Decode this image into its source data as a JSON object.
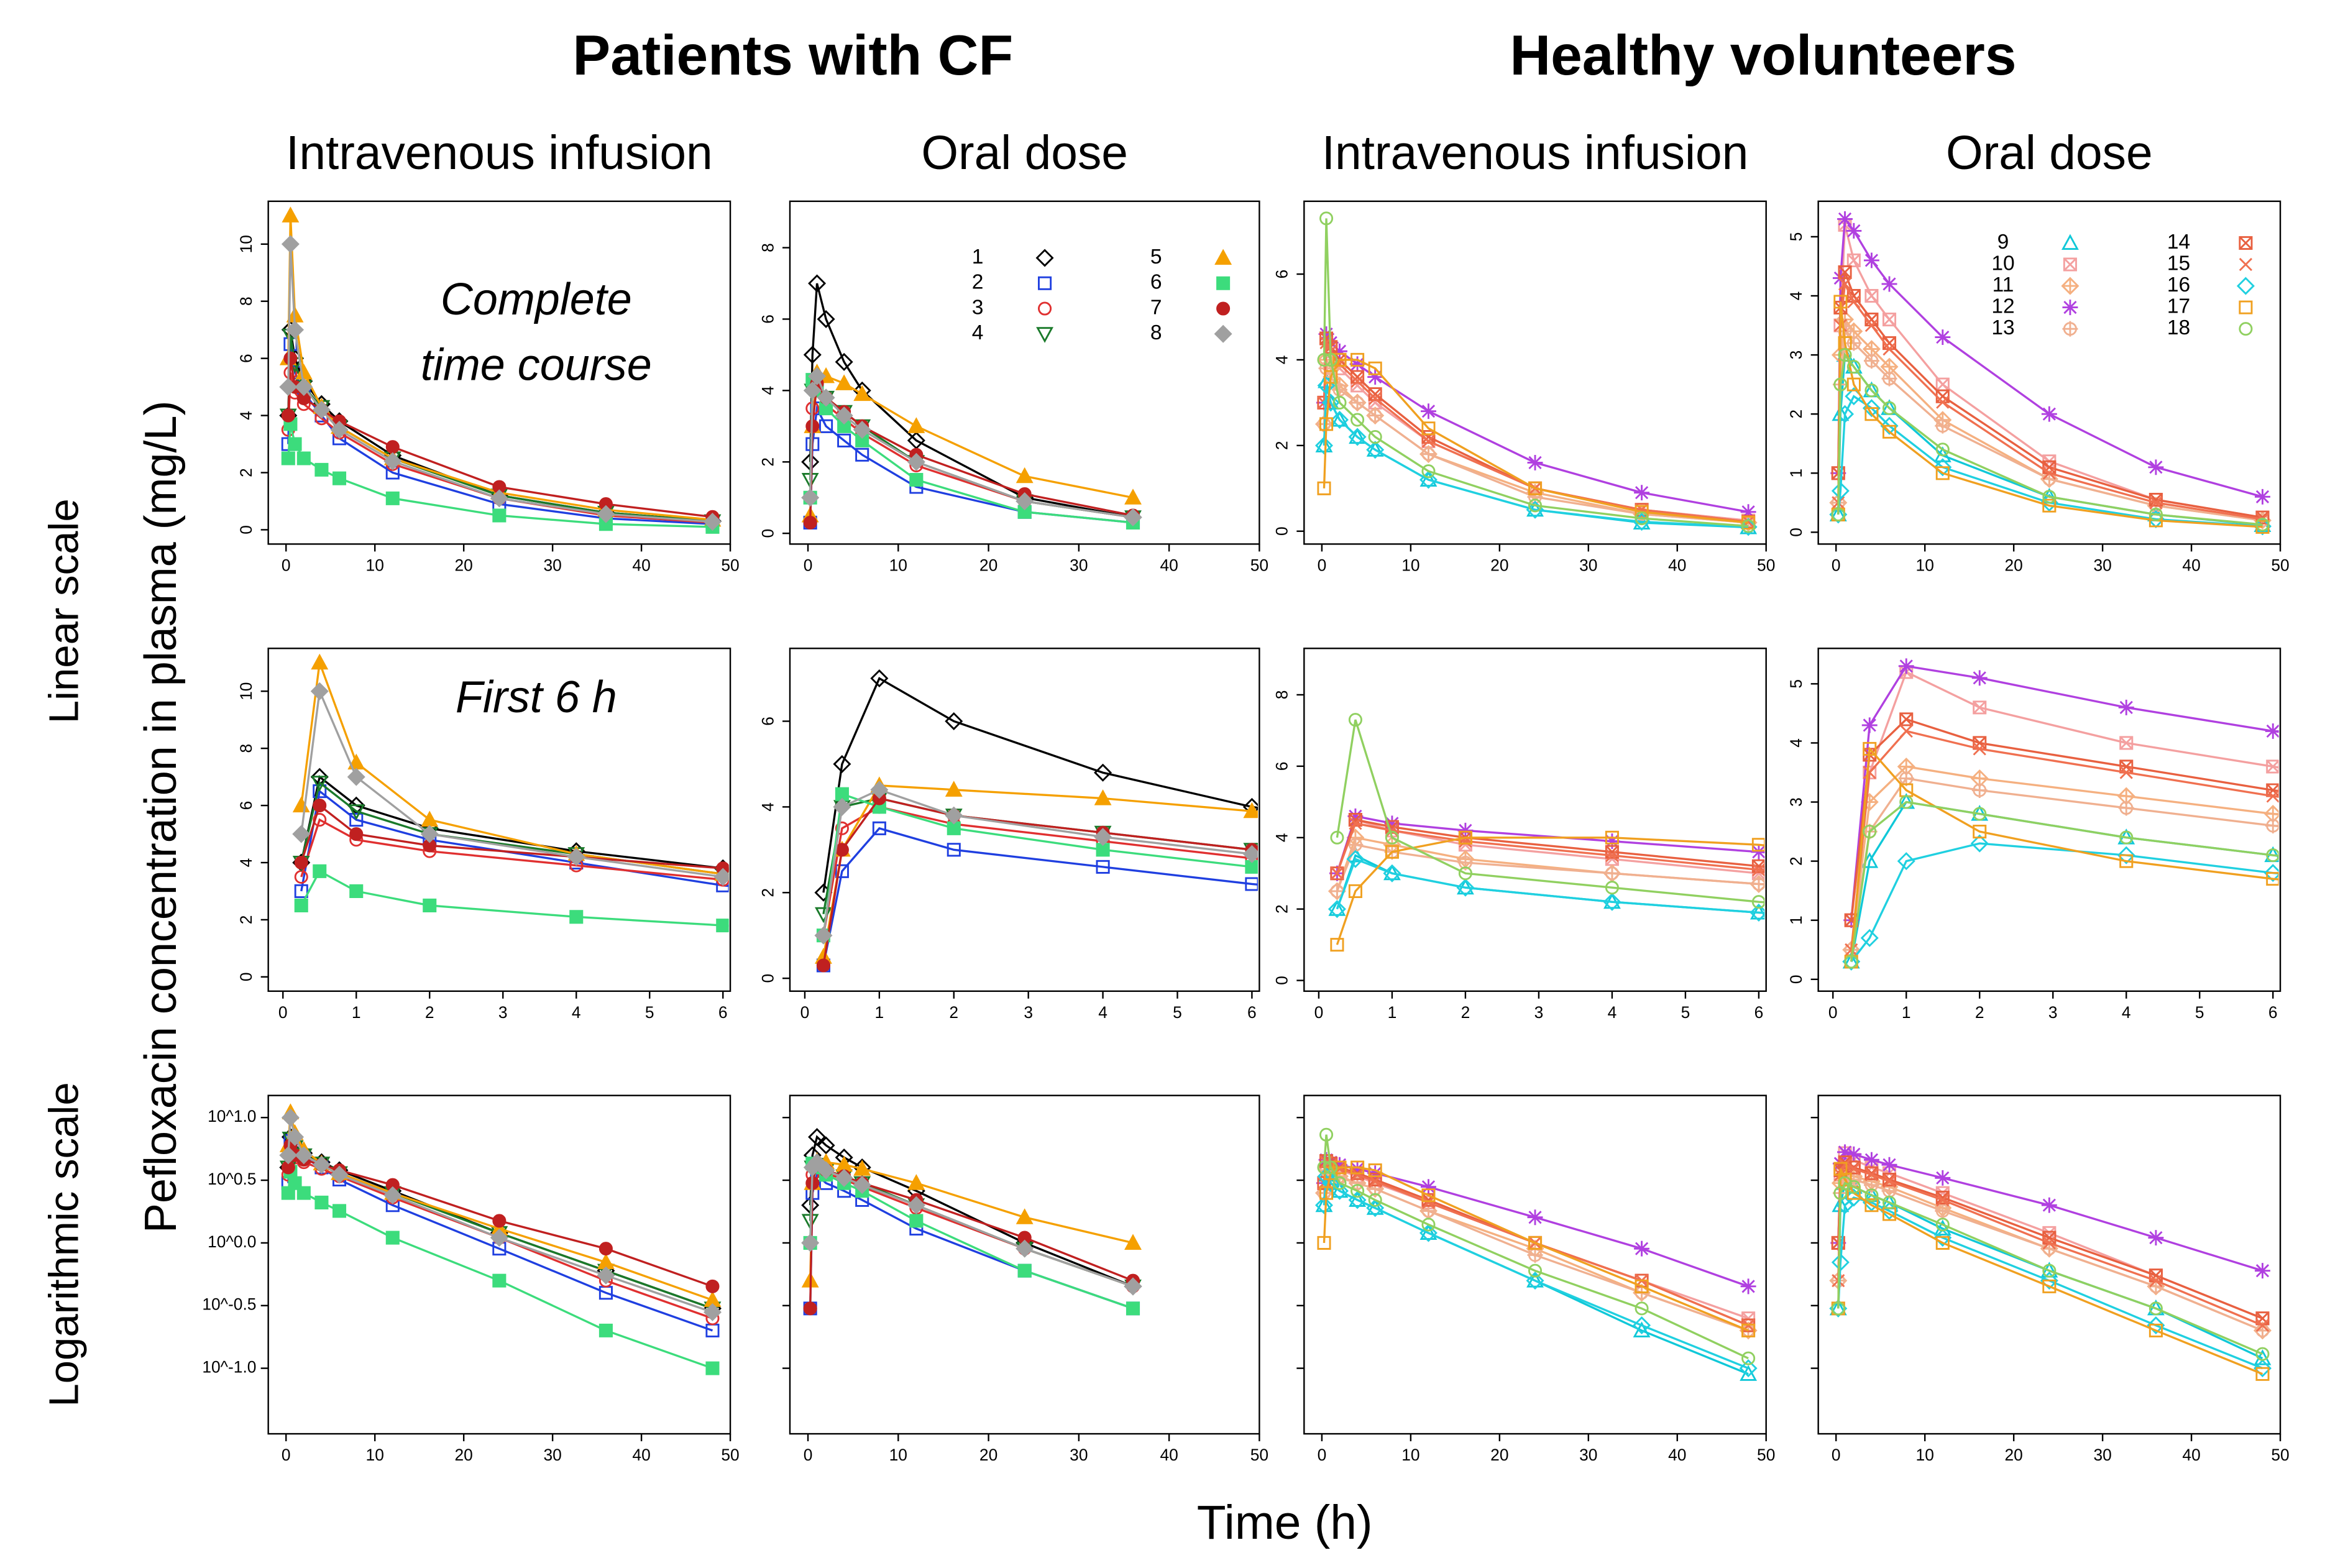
{
  "group_titles": [
    "Patients with CF",
    "Healthy volunteers"
  ],
  "row_labels": [
    "Linear scale",
    "Logarithmic scale"
  ],
  "ylabel": "Pefloxacin concentration in plasma (mg/L)",
  "xlabel": "Time (h)",
  "chart_data": [
    {
      "type": "line",
      "title": "Intravenous infusion",
      "legend": false,
      "x": [
        0.25,
        0.5,
        1,
        2,
        4,
        6,
        12,
        24,
        36,
        48
      ],
      "series": [
        {
          "name": "1",
          "color": "#000000",
          "marker": "diamond",
          "filled": false,
          "values": [
            4,
            7,
            6,
            5.2,
            4.4,
            3.8,
            2.6,
            1.2,
            0.6,
            0.3
          ]
        },
        {
          "name": "2",
          "color": "#1f3fe0",
          "marker": "square",
          "filled": false,
          "values": [
            3,
            6.5,
            5.5,
            4.8,
            4,
            3.2,
            2,
            0.9,
            0.4,
            0.2
          ]
        },
        {
          "name": "3",
          "color": "#e03030",
          "marker": "circle",
          "filled": false,
          "values": [
            3.5,
            5.5,
            4.8,
            4.4,
            3.9,
            3.4,
            2.3,
            1.1,
            0.5,
            0.25
          ]
        },
        {
          "name": "4",
          "color": "#1a7a2a",
          "marker": "tri-down",
          "filled": false,
          "values": [
            4,
            6.8,
            5.8,
            5,
            4.3,
            3.6,
            2.5,
            1.2,
            0.6,
            0.3
          ]
        },
        {
          "name": "5",
          "color": "#f5a000",
          "marker": "tri-up",
          "filled": true,
          "values": [
            6,
            11,
            7.5,
            5.5,
            4.3,
            3.6,
            2.5,
            1.3,
            0.7,
            0.35
          ]
        },
        {
          "name": "6",
          "color": "#3cdc7c",
          "marker": "square",
          "filled": true,
          "values": [
            2.5,
            3.7,
            3,
            2.5,
            2.1,
            1.8,
            1.1,
            0.5,
            0.2,
            0.1
          ]
        },
        {
          "name": "7",
          "color": "#c02020",
          "marker": "circle",
          "filled": true,
          "values": [
            4,
            6,
            5,
            4.6,
            4.2,
            3.8,
            2.9,
            1.5,
            0.9,
            0.45
          ]
        },
        {
          "name": "8",
          "color": "#a0a0a0",
          "marker": "diamond",
          "filled": true,
          "values": [
            5,
            10,
            7,
            5,
            4.2,
            3.5,
            2.4,
            1.1,
            0.55,
            0.28
          ]
        }
      ],
      "views": [
        {
          "xlim": [
            -2,
            50
          ],
          "xticks": [
            0,
            10,
            20,
            30,
            40,
            50
          ],
          "ylim": [
            -0.5,
            11.5
          ],
          "yticks": [
            0,
            2,
            4,
            6,
            8,
            10
          ],
          "annotation": [
            "Complete",
            "time course"
          ]
        },
        {
          "xlim": [
            -0.2,
            6.1
          ],
          "xticks": [
            0,
            1,
            2,
            3,
            4,
            5,
            6
          ],
          "ylim": [
            -0.5,
            11.5
          ],
          "yticks": [
            0,
            2,
            4,
            6,
            8,
            10
          ],
          "annotation": [
            "First 6 h"
          ]
        },
        {
          "xlim": [
            -2,
            50
          ],
          "xticks": [
            0,
            10,
            20,
            30,
            40,
            50
          ],
          "log_scale": true,
          "ylim": [
            0.03,
            15
          ],
          "yticks": [
            {
              "value": 10,
              "label": "10^1.0"
            },
            {
              "value": 3.162,
              "label": "10^0.5"
            },
            {
              "value": 1,
              "label": "10^0.0"
            },
            {
              "value": 0.3162,
              "label": "10^-0.5"
            },
            {
              "value": 0.1,
              "label": "10^-1.0"
            }
          ]
        }
      ]
    },
    {
      "type": "line",
      "title": "Oral dose",
      "legend": true,
      "x": [
        0.25,
        0.5,
        1,
        2,
        4,
        6,
        12,
        24,
        36,
        48
      ],
      "series": [
        {
          "name": "1",
          "color": "#000000",
          "marker": "diamond",
          "filled": false,
          "values": [
            2,
            5,
            7,
            6,
            4.8,
            4,
            2.6,
            1,
            0.45,
            null
          ]
        },
        {
          "name": "2",
          "color": "#1f3fe0",
          "marker": "square",
          "filled": false,
          "values": [
            0.3,
            2.5,
            3.5,
            3,
            2.6,
            2.2,
            1.3,
            0.6,
            0.3,
            null
          ]
        },
        {
          "name": "3",
          "color": "#e03030",
          "marker": "circle",
          "filled": false,
          "values": [
            1,
            3.5,
            4,
            3.6,
            3.2,
            2.8,
            1.9,
            0.9,
            0.45,
            null
          ]
        },
        {
          "name": "4",
          "color": "#1a7a2a",
          "marker": "tri-down",
          "filled": false,
          "values": [
            1.5,
            4,
            4.2,
            3.8,
            3.4,
            3,
            2,
            0.9,
            0.45,
            null
          ]
        },
        {
          "name": "5",
          "color": "#f5a000",
          "marker": "tri-up",
          "filled": true,
          "values": [
            0.5,
            3,
            4.5,
            4.4,
            4.2,
            3.9,
            3,
            1.6,
            1,
            null
          ]
        },
        {
          "name": "6",
          "color": "#3cdc7c",
          "marker": "square",
          "filled": true,
          "values": [
            1,
            4.3,
            4,
            3.5,
            3,
            2.6,
            1.5,
            0.6,
            0.3,
            null
          ]
        },
        {
          "name": "7",
          "color": "#c02020",
          "marker": "circle",
          "filled": true,
          "values": [
            0.3,
            3,
            4.2,
            3.8,
            3.4,
            3,
            2.2,
            1.1,
            0.5,
            null
          ]
        },
        {
          "name": "8",
          "color": "#a0a0a0",
          "marker": "diamond",
          "filled": true,
          "values": [
            1,
            4,
            4.4,
            3.8,
            3.3,
            2.9,
            2,
            0.9,
            0.45,
            null
          ]
        }
      ],
      "views": [
        {
          "xlim": [
            -2,
            50
          ],
          "xticks": [
            0,
            10,
            20,
            30,
            40,
            50
          ],
          "ylim": [
            -0.3,
            9.3
          ],
          "yticks": [
            0,
            2,
            4,
            6,
            8
          ]
        },
        {
          "xlim": [
            -0.2,
            6.1
          ],
          "xticks": [
            0,
            1,
            2,
            3,
            4,
            5,
            6
          ],
          "ylim": [
            -0.3,
            7.7
          ],
          "yticks": [
            0,
            2,
            4,
            6
          ]
        },
        {
          "xlim": [
            -2,
            50
          ],
          "xticks": [
            0,
            10,
            20,
            30,
            40,
            50
          ],
          "log_scale": true,
          "ylim": [
            0.03,
            15
          ],
          "yticks": [
            10,
            3.162,
            1,
            0.3162,
            0.1
          ],
          "ytick_labels": false
        }
      ]
    },
    {
      "type": "line",
      "title": "Intravenous infusion",
      "legend": false,
      "x": [
        0.25,
        0.5,
        1,
        2,
        4,
        6,
        12,
        24,
        36,
        48
      ],
      "series": [
        {
          "name": "9",
          "color": "#10c8d8",
          "marker": "tri-up",
          "filled": false,
          "values": [
            2,
            3.5,
            3,
            2.6,
            2.2,
            1.9,
            1.2,
            0.5,
            0.2,
            0.09
          ]
        },
        {
          "name": "10",
          "color": "#f4a0a0",
          "marker": "sqx",
          "filled": false,
          "values": [
            3,
            4.5,
            4.2,
            3.8,
            3.4,
            3,
            2.1,
            1,
            0.5,
            0.25
          ]
        },
        {
          "name": "11",
          "color": "#f5b080",
          "marker": "diaplus",
          "filled": false,
          "values": [
            2.5,
            4,
            3.8,
            3.4,
            3,
            2.7,
            1.8,
            0.9,
            0.4,
            0.2
          ]
        },
        {
          "name": "12",
          "color": "#b040e0",
          "marker": "star",
          "filled": false,
          "values": [
            3,
            4.6,
            4.4,
            4.2,
            3.9,
            3.6,
            2.8,
            1.6,
            0.9,
            0.45
          ]
        },
        {
          "name": "13",
          "color": "#f0b090",
          "marker": "circplus",
          "filled": false,
          "values": [
            2.5,
            3.8,
            3.6,
            3.3,
            3,
            2.7,
            1.8,
            0.8,
            0.4,
            0.2
          ]
        },
        {
          "name": "14",
          "color": "#e86040",
          "marker": "sqx",
          "filled": false,
          "values": [
            3,
            4.5,
            4.3,
            4,
            3.6,
            3.2,
            2.2,
            1,
            0.5,
            0.22
          ]
        },
        {
          "name": "15",
          "color": "#f07050",
          "marker": "x",
          "filled": false,
          "values": [
            3,
            4.4,
            4.2,
            3.9,
            3.5,
            3.1,
            2.1,
            1,
            0.5,
            0.22
          ]
        },
        {
          "name": "16",
          "color": "#20d0e0",
          "marker": "diamond",
          "filled": false,
          "values": [
            2,
            3.4,
            3,
            2.6,
            2.2,
            1.9,
            1.2,
            0.5,
            0.22,
            0.1
          ]
        },
        {
          "name": "17",
          "color": "#f0a020",
          "marker": "square",
          "filled": false,
          "values": [
            1,
            2.5,
            3.6,
            4,
            4,
            3.8,
            2.4,
            1,
            0.45,
            0.2
          ]
        },
        {
          "name": "18",
          "color": "#90d060",
          "marker": "circle",
          "filled": false,
          "values": [
            4,
            7.3,
            4,
            3,
            2.6,
            2.2,
            1.4,
            0.6,
            0.3,
            0.12
          ]
        }
      ],
      "views": [
        {
          "xlim": [
            -2,
            50
          ],
          "xticks": [
            0,
            10,
            20,
            30,
            40,
            50
          ],
          "ylim": [
            -0.3,
            7.7
          ],
          "yticks": [
            0,
            2,
            4,
            6
          ]
        },
        {
          "xlim": [
            -0.2,
            6.1
          ],
          "xticks": [
            0,
            1,
            2,
            3,
            4,
            5,
            6
          ],
          "ylim": [
            -0.3,
            9.3
          ],
          "yticks": [
            0,
            2,
            4,
            6,
            8
          ]
        },
        {
          "xlim": [
            -2,
            50
          ],
          "xticks": [
            0,
            10,
            20,
            30,
            40,
            50
          ],
          "log_scale": true,
          "ylim": [
            0.03,
            15
          ],
          "yticks": [
            10,
            3.162,
            1,
            0.3162,
            0.1
          ],
          "ytick_labels": false
        }
      ]
    },
    {
      "type": "line",
      "title": "Oral dose",
      "legend": true,
      "x": [
        0.25,
        0.5,
        1,
        2,
        4,
        6,
        12,
        24,
        36,
        48
      ],
      "series": [
        {
          "name": "9",
          "color": "#10c8d8",
          "marker": "tri-up",
          "filled": false,
          "values": [
            0.3,
            2,
            3,
            2.8,
            2.4,
            2.1,
            1.3,
            0.6,
            0.3,
            0.12
          ]
        },
        {
          "name": "10",
          "color": "#f4a0a0",
          "marker": "sqx",
          "filled": false,
          "values": [
            1,
            3.5,
            5.2,
            4.6,
            4,
            3.6,
            2.5,
            1.2,
            0.55,
            0.25
          ]
        },
        {
          "name": "11",
          "color": "#f5b080",
          "marker": "diaplus",
          "filled": false,
          "values": [
            0.5,
            3,
            3.6,
            3.4,
            3.1,
            2.8,
            1.9,
            0.9,
            0.45,
            0.2
          ]
        },
        {
          "name": "12",
          "color": "#b040e0",
          "marker": "star",
          "filled": false,
          "values": [
            1,
            4.3,
            5.3,
            5.1,
            4.6,
            4.2,
            3.3,
            2,
            1.1,
            0.6
          ]
        },
        {
          "name": "13",
          "color": "#f0b090",
          "marker": "circplus",
          "filled": false,
          "values": [
            0.5,
            2.5,
            3.4,
            3.2,
            2.9,
            2.6,
            1.8,
            0.9,
            0.45,
            0.2
          ]
        },
        {
          "name": "14",
          "color": "#e86040",
          "marker": "sqx",
          "filled": false,
          "values": [
            1,
            3.8,
            4.4,
            4,
            3.6,
            3.2,
            2.3,
            1.1,
            0.55,
            0.25
          ]
        },
        {
          "name": "15",
          "color": "#f07050",
          "marker": "x",
          "filled": false,
          "values": [
            0.5,
            3.5,
            4.2,
            3.9,
            3.5,
            3.1,
            2.2,
            1,
            0.5,
            0.22
          ]
        },
        {
          "name": "16",
          "color": "#20d0e0",
          "marker": "diamond",
          "filled": false,
          "values": [
            0.3,
            0.7,
            2,
            2.3,
            2.1,
            1.8,
            1.1,
            0.5,
            0.22,
            0.1
          ]
        },
        {
          "name": "17",
          "color": "#f0a020",
          "marker": "square",
          "filled": false,
          "values": [
            0.3,
            3.9,
            3.2,
            2.5,
            2,
            1.7,
            1,
            0.45,
            0.2,
            0.09
          ]
        },
        {
          "name": "18",
          "color": "#90d060",
          "marker": "circle",
          "filled": false,
          "values": [
            0.3,
            2.5,
            3,
            2.8,
            2.4,
            2.1,
            1.4,
            0.6,
            0.3,
            0.13
          ]
        }
      ],
      "views": [
        {
          "xlim": [
            -2,
            50
          ],
          "xticks": [
            0,
            10,
            20,
            30,
            40,
            50
          ],
          "ylim": [
            -0.2,
            5.6
          ],
          "yticks": [
            0,
            1,
            2,
            3,
            4,
            5
          ]
        },
        {
          "xlim": [
            -0.2,
            6.1
          ],
          "xticks": [
            0,
            1,
            2,
            3,
            4,
            5,
            6
          ],
          "ylim": [
            -0.2,
            5.6
          ],
          "yticks": [
            0,
            1,
            2,
            3,
            4,
            5
          ]
        },
        {
          "xlim": [
            -2,
            50
          ],
          "xticks": [
            0,
            10,
            20,
            30,
            40,
            50
          ],
          "log_scale": true,
          "ylim": [
            0.03,
            15
          ],
          "yticks": [
            10,
            3.162,
            1,
            0.3162,
            0.1
          ],
          "ytick_labels": false
        }
      ]
    }
  ]
}
